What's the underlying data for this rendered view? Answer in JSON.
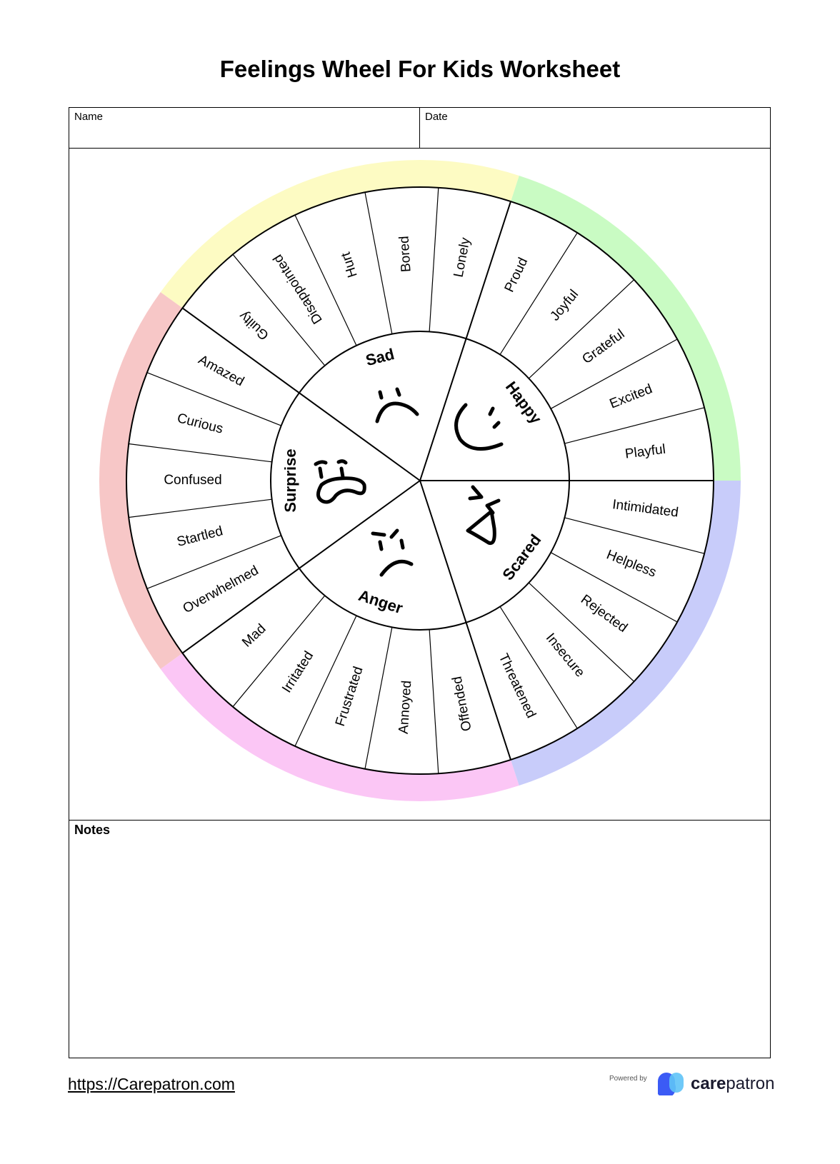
{
  "title": "Feelings Wheel For Kids Worksheet",
  "fields": {
    "name_label": "Name",
    "date_label": "Date"
  },
  "notes_label": "Notes",
  "footer": {
    "url": "https://Carepatron.com",
    "powered_by": "Powered by",
    "logo_bold": "care",
    "logo_rest": "patron"
  },
  "wheel": {
    "categories": [
      {
        "label": "Happy",
        "ring_color": "#c9fbc3",
        "words": [
          "Proud",
          "Joyful",
          "Grateful",
          "Excited",
          "Playful"
        ]
      },
      {
        "label": "Sad",
        "ring_color": "#fdfbc3",
        "words": [
          "Guilty",
          "Disappointed",
          "Hurt",
          "Bored",
          "Lonely"
        ]
      },
      {
        "label": "Surprise",
        "ring_color": "#f7c7c7",
        "words": [
          "Amazed",
          "Curious",
          "Confused",
          "Startled",
          "Overwhelmed"
        ]
      },
      {
        "label": "Anger",
        "ring_color": "#fbc6f5",
        "words": [
          "Mad",
          "Irritated",
          "Frustrated",
          "Annoyed",
          "Offended"
        ]
      },
      {
        "label": "Scared",
        "ring_color": "#c8ccfa",
        "words": [
          "Threatened",
          "Insecure",
          "Rejected",
          "Helpless",
          "Intimidated"
        ]
      }
    ]
  }
}
